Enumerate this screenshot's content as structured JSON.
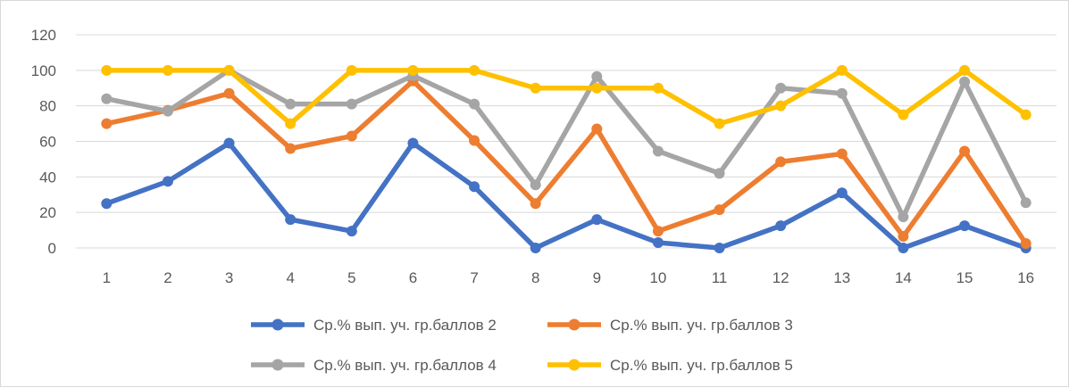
{
  "chart_data": {
    "type": "line",
    "title": "",
    "xlabel": "",
    "ylabel": "",
    "categories": [
      "1",
      "2",
      "3",
      "4",
      "5",
      "6",
      "7",
      "8",
      "9",
      "10",
      "11",
      "12",
      "13",
      "14",
      "15",
      "16"
    ],
    "ylim": [
      0,
      120
    ],
    "yticks": [
      0,
      20,
      40,
      60,
      80,
      100,
      120
    ],
    "grid": true,
    "legend_position": "bottom",
    "series": [
      {
        "name": "Ср.% вып. уч. гр.баллов 2",
        "color": "#4472C4",
        "values": [
          25,
          37.5,
          59,
          16,
          9.5,
          59,
          34.5,
          0,
          16,
          3,
          0,
          12.5,
          31,
          0,
          12.5,
          0
        ]
      },
      {
        "name": "Ср.% вып. уч. гр.баллов 3",
        "color": "#ED7D31",
        "values": [
          70,
          77.5,
          87,
          56,
          63,
          94,
          60.5,
          25,
          67,
          9.5,
          21.5,
          48.5,
          53,
          6.5,
          54.5,
          2.5
        ]
      },
      {
        "name": "Ср.% вып. уч. гр.баллов 4",
        "color": "#A5A5A5",
        "values": [
          84,
          77,
          100,
          81,
          81,
          97,
          81,
          35.5,
          96.5,
          54.5,
          42,
          90,
          87,
          17.5,
          93.5,
          25.5
        ]
      },
      {
        "name": "Ср.% вып. уч. гр.баллов 5",
        "color": "#FFC000",
        "values": [
          100,
          100,
          100,
          70,
          100,
          100,
          100,
          90,
          90,
          90,
          70,
          80,
          100,
          75,
          100,
          75
        ]
      }
    ]
  }
}
